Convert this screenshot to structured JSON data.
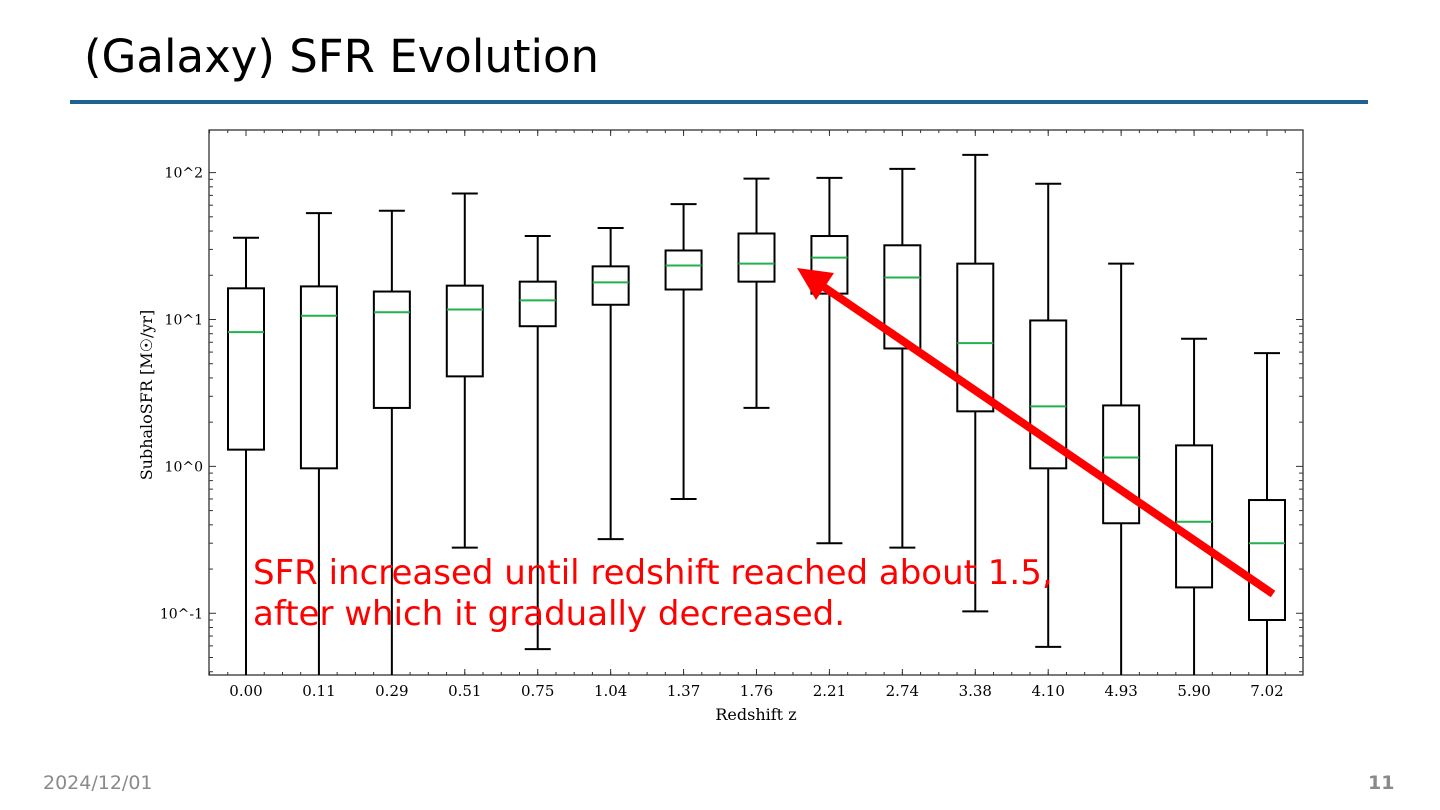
{
  "slide": {
    "title": "(Galaxy) SFR Evolution",
    "date": "2024/12/01",
    "page_number": "11",
    "rule_color": "#1f6190"
  },
  "annotation": {
    "line1": "SFR increased until redshift reached about 1.5,",
    "line2": "after which it gradually decreased.",
    "color": "#ff0000",
    "arrow": "red arrow pointing from z≈7.02 up-left toward z≈1.76"
  },
  "chart_data": {
    "type": "box",
    "title": "",
    "xlabel": "Redshift z",
    "ylabel": "SubhaloSFR [M☉/yr]",
    "yscale": "log",
    "ylim": [
      0.038,
      195
    ],
    "yticks": [
      0.1,
      1,
      10,
      100
    ],
    "ytick_labels": [
      "10^-1",
      "10^0",
      "10^1",
      "10^2"
    ],
    "categories": [
      "0.00",
      "0.11",
      "0.29",
      "0.51",
      "0.75",
      "1.04",
      "1.37",
      "1.76",
      "2.21",
      "2.74",
      "3.38",
      "4.10",
      "4.93",
      "5.90",
      "7.02"
    ],
    "median_color": "#22b14c",
    "boxes": [
      {
        "whislo": null,
        "q1": 1.3,
        "med": 8.2,
        "q3": 16.3,
        "whishi": 36
      },
      {
        "whislo": null,
        "q1": 0.97,
        "med": 10.6,
        "q3": 16.8,
        "whishi": 53
      },
      {
        "whislo": null,
        "q1": 2.5,
        "med": 11.2,
        "q3": 15.5,
        "whishi": 55
      },
      {
        "whislo": 0.28,
        "q1": 4.1,
        "med": 11.7,
        "q3": 17,
        "whishi": 72
      },
      {
        "whislo": 0.057,
        "q1": 9.0,
        "med": 13.5,
        "q3": 18.1,
        "whishi": 37
      },
      {
        "whislo": 0.32,
        "q1": 12.6,
        "med": 17.9,
        "q3": 23,
        "whishi": 42
      },
      {
        "whislo": 0.6,
        "q1": 16,
        "med": 23.3,
        "q3": 29.5,
        "whishi": 61
      },
      {
        "whislo": 2.5,
        "q1": 18.1,
        "med": 24,
        "q3": 38.5,
        "whishi": 91
      },
      {
        "whislo": 0.3,
        "q1": 15,
        "med": 26.4,
        "q3": 37,
        "whishi": 92
      },
      {
        "whislo": 0.28,
        "q1": 6.35,
        "med": 19.3,
        "q3": 32,
        "whishi": 106
      },
      {
        "whislo": 0.103,
        "q1": 2.37,
        "med": 6.9,
        "q3": 24,
        "whishi": 132
      },
      {
        "whislo": 0.059,
        "q1": 0.97,
        "med": 2.56,
        "q3": 9.85,
        "whishi": 84
      },
      {
        "whislo": null,
        "q1": 0.41,
        "med": 1.15,
        "q3": 2.6,
        "whishi": 24
      },
      {
        "whislo": null,
        "q1": 0.15,
        "med": 0.42,
        "q3": 1.39,
        "whishi": 7.4
      },
      {
        "whislo": null,
        "q1": 0.09,
        "med": 0.3,
        "q3": 0.59,
        "whishi": 5.9
      }
    ]
  }
}
